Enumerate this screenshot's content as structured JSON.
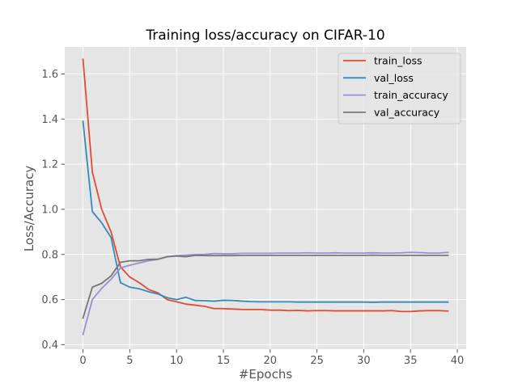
{
  "chart_data": {
    "type": "line",
    "title": "Training loss/accuracy on CIFAR-10",
    "xlabel": "#Epochs",
    "ylabel": "Loss/Accuracy",
    "xlim": [
      -1.95,
      40.95
    ],
    "ylim": [
      0.38,
      1.72
    ],
    "xticks": [
      0,
      5,
      10,
      15,
      20,
      25,
      30,
      35,
      40
    ],
    "yticks": [
      0.4,
      0.6,
      0.8,
      1.0,
      1.2,
      1.4,
      1.6
    ],
    "ytick_labels": [
      "0.4",
      "0.6",
      "0.8",
      "1.0",
      "1.2",
      "1.4",
      "1.6"
    ],
    "grid": true,
    "legend_position": "top-right",
    "x": [
      0,
      1,
      2,
      3,
      4,
      5,
      6,
      7,
      8,
      9,
      10,
      11,
      12,
      13,
      14,
      15,
      16,
      17,
      18,
      19,
      20,
      21,
      22,
      23,
      24,
      25,
      26,
      27,
      28,
      29,
      30,
      31,
      32,
      33,
      34,
      35,
      36,
      37,
      38,
      39
    ],
    "series": [
      {
        "name": "train_loss",
        "color": "#e24a33",
        "values": [
          1.665,
          1.165,
          1.0,
          0.9,
          0.745,
          0.7,
          0.675,
          0.645,
          0.63,
          0.6,
          0.59,
          0.58,
          0.575,
          0.57,
          0.56,
          0.56,
          0.558,
          0.556,
          0.556,
          0.556,
          0.553,
          0.553,
          0.551,
          0.552,
          0.55,
          0.551,
          0.551,
          0.55,
          0.55,
          0.55,
          0.55,
          0.55,
          0.55,
          0.551,
          0.547,
          0.547,
          0.55,
          0.551,
          0.551,
          0.549
        ]
      },
      {
        "name": "val_loss",
        "color": "#348abd",
        "values": [
          1.39,
          0.99,
          0.94,
          0.875,
          0.675,
          0.655,
          0.648,
          0.635,
          0.625,
          0.608,
          0.6,
          0.61,
          0.596,
          0.595,
          0.593,
          0.597,
          0.596,
          0.593,
          0.591,
          0.59,
          0.59,
          0.59,
          0.59,
          0.589,
          0.589,
          0.589,
          0.589,
          0.589,
          0.589,
          0.589,
          0.589,
          0.588,
          0.589,
          0.589,
          0.589,
          0.589,
          0.589,
          0.589,
          0.589,
          0.589
        ]
      },
      {
        "name": "train_accuracy",
        "color": "#988ed5",
        "values": [
          0.445,
          0.6,
          0.65,
          0.69,
          0.74,
          0.752,
          0.762,
          0.772,
          0.778,
          0.79,
          0.795,
          0.797,
          0.799,
          0.8,
          0.804,
          0.803,
          0.803,
          0.805,
          0.805,
          0.805,
          0.805,
          0.806,
          0.806,
          0.806,
          0.807,
          0.806,
          0.806,
          0.807,
          0.806,
          0.806,
          0.806,
          0.807,
          0.806,
          0.806,
          0.807,
          0.809,
          0.808,
          0.806,
          0.806,
          0.809
        ]
      },
      {
        "name": "val_accuracy",
        "color": "#777777",
        "values": [
          0.518,
          0.655,
          0.672,
          0.705,
          0.765,
          0.772,
          0.772,
          0.778,
          0.779,
          0.79,
          0.793,
          0.79,
          0.796,
          0.795,
          0.795,
          0.795,
          0.795,
          0.796,
          0.796,
          0.796,
          0.796,
          0.796,
          0.796,
          0.796,
          0.796,
          0.796,
          0.796,
          0.796,
          0.796,
          0.796,
          0.796,
          0.797,
          0.796,
          0.796,
          0.796,
          0.796,
          0.796,
          0.796,
          0.796,
          0.796
        ]
      }
    ]
  }
}
